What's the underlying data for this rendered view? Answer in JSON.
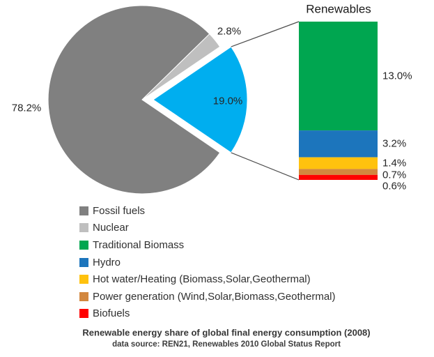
{
  "chart_data": {
    "type": "pie",
    "title": "Renewables",
    "layout": "exploded pie with callout stacked bar, legend bottom-left, caption bottom center",
    "pie": {
      "segments": [
        {
          "label": "Fossil fuels",
          "value": 78.2,
          "display": "78.2%",
          "color": "#808080",
          "exploded": false
        },
        {
          "label": "Nuclear",
          "value": 2.8,
          "display": "2.8%",
          "color": "#BFBFBF",
          "exploded": false
        },
        {
          "label": "Renewables",
          "value": 19.0,
          "display": "19.0%",
          "color": "#00AEEF",
          "exploded": true
        }
      ]
    },
    "bar": {
      "title": "Renewables",
      "segments": [
        {
          "label": "Traditional Biomass",
          "value": 13.0,
          "display": "13.0%",
          "color": "#00A650"
        },
        {
          "label": "Hydro",
          "value": 3.2,
          "display": "3.2%",
          "color": "#1C75BC"
        },
        {
          "label": "Hot water/Heating (Biomass,Solar,Geothermal)",
          "value": 1.4,
          "display": "1.4%",
          "color": "#FFC20E"
        },
        {
          "label": "Power generation (Wind,Solar,Biomass,Geothermal)",
          "value": 0.7,
          "display": "0.7%",
          "color": "#D2873F"
        },
        {
          "label": "Biofuels",
          "value": 0.6,
          "display": "0.6%",
          "color": "#FF0000"
        }
      ]
    }
  },
  "legend": {
    "items": [
      {
        "label": "Fossil fuels",
        "color": "#808080"
      },
      {
        "label": "Nuclear",
        "color": "#BFBFBF"
      },
      {
        "label": "Traditional Biomass",
        "color": "#00A650"
      },
      {
        "label": "Hydro",
        "color": "#1C75BC"
      },
      {
        "label": "Hot water/Heating (Biomass,Solar,Geothermal)",
        "color": "#FFC20E"
      },
      {
        "label": "Power generation (Wind,Solar,Biomass,Geothermal)",
        "color": "#D2873F"
      },
      {
        "label": "Biofuels",
        "color": "#FF0000"
      }
    ]
  },
  "caption": {
    "line1": "Renewable energy share of global final energy consumption (2008)",
    "line2": "data source: REN21, Renewables 2010 Global Status Report"
  }
}
